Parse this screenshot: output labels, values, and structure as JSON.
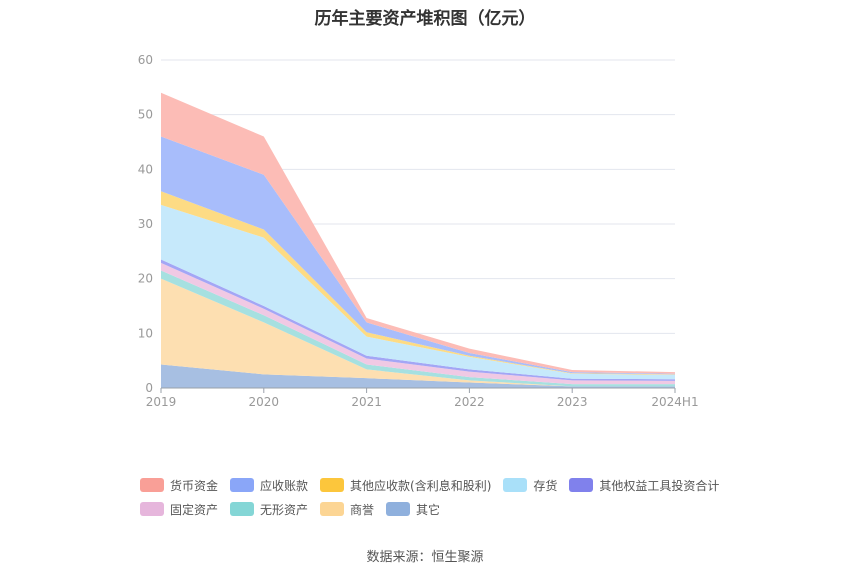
{
  "title": "历年主要资产堆积图（亿元）",
  "source": "数据来源：恒生聚源",
  "chart_data": {
    "type": "area",
    "stacked": true,
    "categories": [
      "2019",
      "2020",
      "2021",
      "2022",
      "2023",
      "2024H1"
    ],
    "ylim": [
      0,
      60
    ],
    "yticks": [
      0,
      10,
      20,
      30,
      40,
      50,
      60
    ],
    "grid": true,
    "legend_position": "bottom",
    "series": [
      {
        "name": "其它",
        "color": "#a7bfe2",
        "values": [
          4.3,
          2.5,
          1.8,
          1.0,
          0.3,
          0.3
        ]
      },
      {
        "name": "商誉",
        "color": "#fddfb1",
        "values": [
          15.7,
          9.5,
          1.6,
          0.4,
          0.0,
          0.0
        ]
      },
      {
        "name": "无形资产",
        "color": "#a6e0e0",
        "values": [
          1.5,
          1.3,
          0.9,
          0.6,
          0.4,
          0.4
        ]
      },
      {
        "name": "固定资产",
        "color": "#f0c9e4",
        "values": [
          1.4,
          1.2,
          1.1,
          1.0,
          0.7,
          0.6
        ]
      },
      {
        "name": "其他权益工具投资合计",
        "color": "#a3a6f5",
        "values": [
          0.6,
          0.5,
          0.5,
          0.4,
          0.3,
          0.3
        ]
      },
      {
        "name": "存货",
        "color": "#c6e9fb",
        "values": [
          10.0,
          12.5,
          3.5,
          2.3,
          0.9,
          0.8
        ]
      },
      {
        "name": "其他应收款(含利息和股利)",
        "color": "#fddb84",
        "values": [
          2.5,
          1.5,
          0.8,
          0.2,
          0.1,
          0.1
        ]
      },
      {
        "name": "应收账款",
        "color": "#a8bdfb",
        "values": [
          10.0,
          10.0,
          1.8,
          0.5,
          0.2,
          0.1
        ]
      },
      {
        "name": "货币资金",
        "color": "#fcbcb6",
        "values": [
          8.0,
          7.0,
          0.8,
          0.8,
          0.4,
          0.3
        ]
      }
    ],
    "legend_colors": {
      "货币资金": "#f99f97",
      "应收账款": "#8aa6f8",
      "其他应收款(含利息和股利)": "#fcc63c",
      "存货": "#a9e0f9",
      "其他权益工具投资合计": "#8081ec",
      "固定资产": "#e6b6dc",
      "无形资产": "#84d6d6",
      "商誉": "#fcd594",
      "其它": "#8fb0dd"
    },
    "legend_rows": [
      [
        "货币资金",
        "应收账款",
        "其他应收款(含利息和股利)",
        "存货",
        "其他权益工具投资合计"
      ],
      [
        "固定资产",
        "无形资产",
        "商誉",
        "其它"
      ]
    ]
  }
}
